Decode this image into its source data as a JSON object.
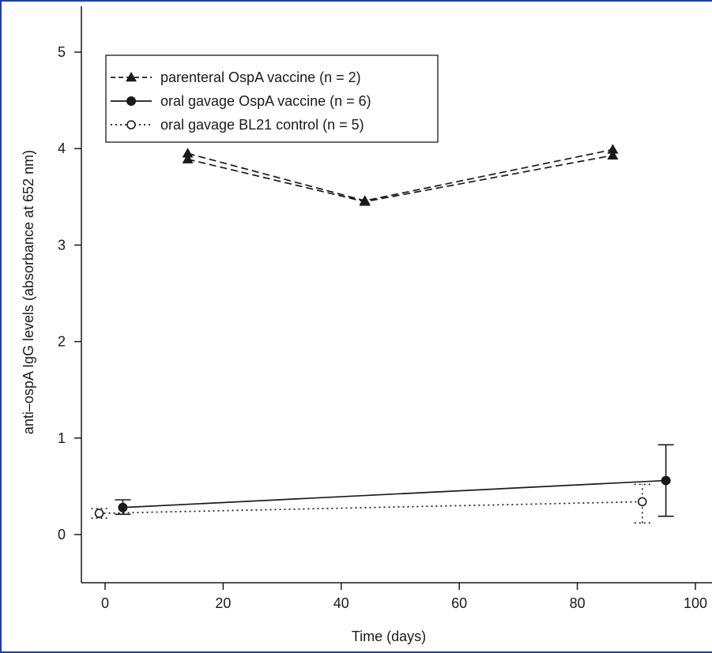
{
  "chart_data": {
    "type": "line",
    "title": "",
    "xlabel": "Time (days)",
    "ylabel": "anti–ospA IgG levels (absorbance at 652 nm)",
    "xlim": [
      -5,
      100
    ],
    "ylim": [
      -0.45,
      5.4
    ],
    "xticks": [
      0,
      20,
      40,
      60,
      80,
      100
    ],
    "yticks": [
      0,
      1,
      2,
      3,
      4,
      5
    ],
    "grid": false,
    "legend_position": "top-left",
    "series": [
      {
        "name": "parenteral OspA vaccine (n = 2)",
        "style": "dashed",
        "marker": "filled-triangle",
        "color": "#1a1a1a",
        "lines": [
          {
            "x": [
              14,
              44,
              86
            ],
            "y": [
              3.95,
              3.46,
              3.99
            ]
          },
          {
            "x": [
              14,
              44,
              86
            ],
            "y": [
              3.89,
              3.45,
              3.93
            ]
          }
        ]
      },
      {
        "name": "oral gavage OspA vaccine (n = 6)",
        "style": "solid",
        "marker": "filled-circle",
        "color": "#1a1a1a",
        "x": [
          3,
          95
        ],
        "y": [
          0.28,
          0.56
        ],
        "error_low": [
          0.21,
          0.19
        ],
        "error_high": [
          0.36,
          0.93
        ]
      },
      {
        "name": "oral gavage BL21 control (n = 5)",
        "style": "dotted",
        "marker": "open-circle",
        "color": "#1a1a1a",
        "x": [
          -1,
          91
        ],
        "y": [
          0.22,
          0.34
        ],
        "error_low": [
          0.17,
          0.12
        ],
        "error_high": [
          0.27,
          0.52
        ]
      }
    ]
  }
}
